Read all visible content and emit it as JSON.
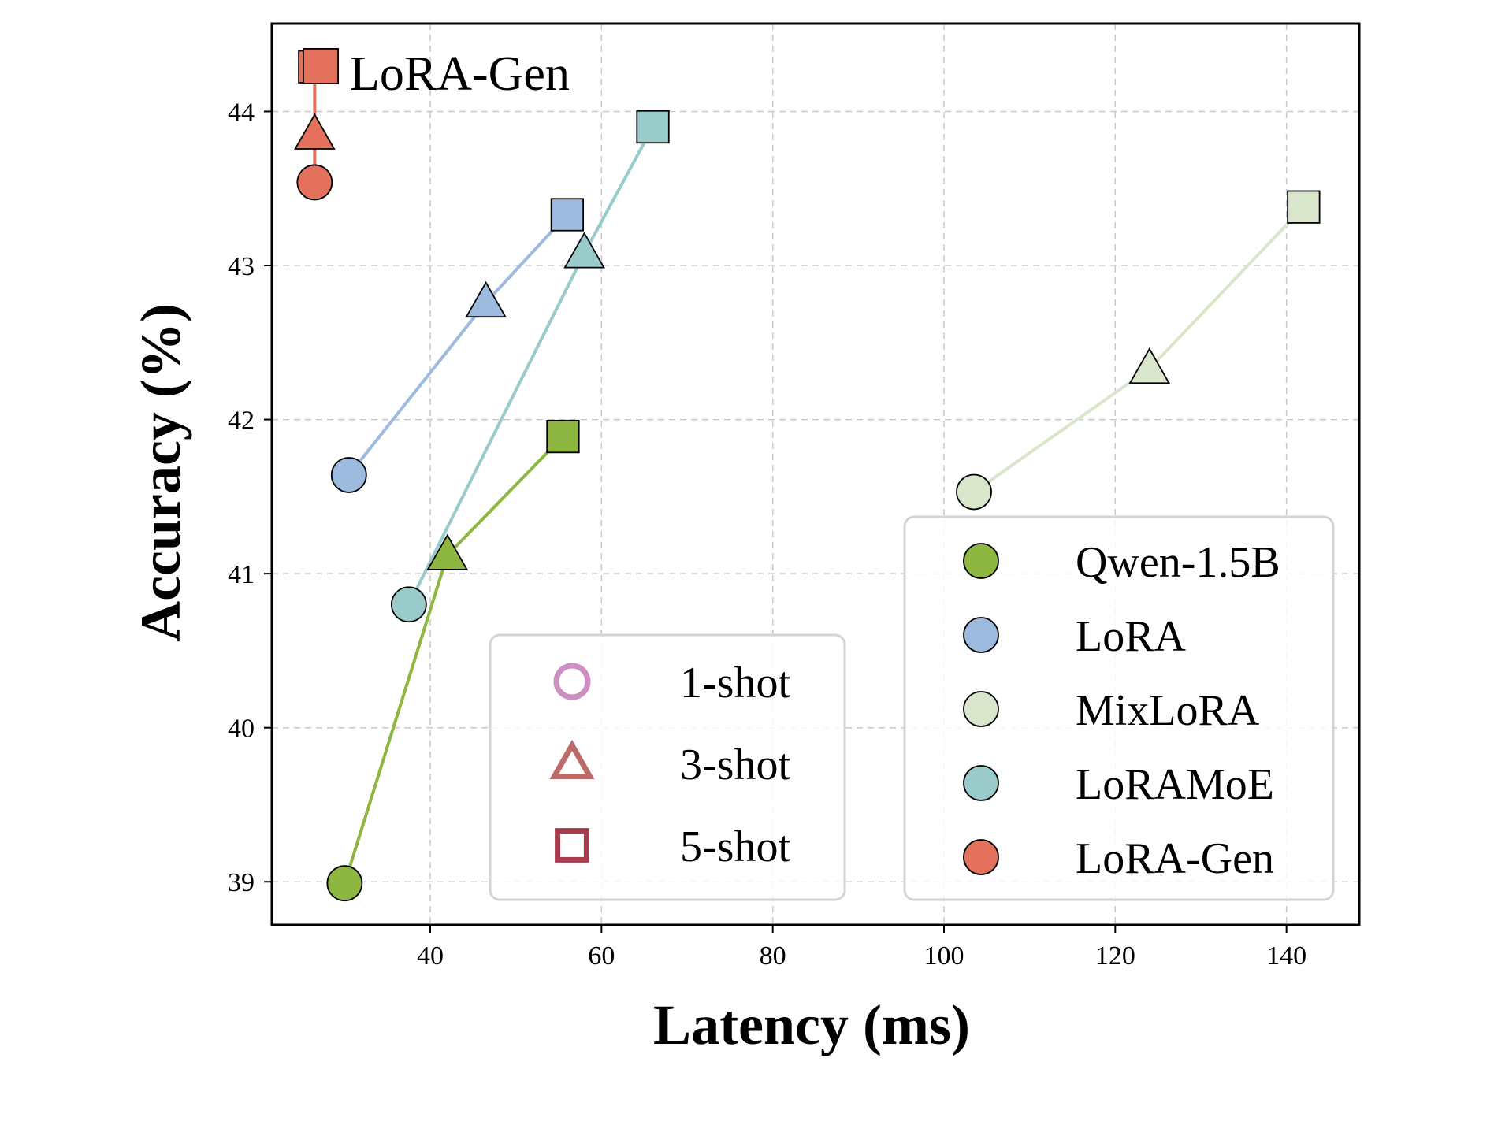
{
  "chart_data": {
    "type": "line",
    "xlabel": "Latency (ms)",
    "ylabel": "Accuracy (%)",
    "xlim": [
      21.5,
      148.5
    ],
    "ylim": [
      38.72,
      44.57
    ],
    "xticks": [
      40,
      60,
      80,
      100,
      120,
      140
    ],
    "yticks": [
      39,
      40,
      41,
      42,
      43,
      44
    ],
    "grid": true,
    "series": [
      {
        "name": "Qwen-1.5B",
        "color": "#8db741",
        "points": [
          {
            "shot": "1-shot",
            "x": 30,
            "y": 38.99
          },
          {
            "shot": "3-shot",
            "x": 42,
            "y": 41.12
          },
          {
            "shot": "5-shot",
            "x": 55.5,
            "y": 41.89
          }
        ]
      },
      {
        "name": "LoRA",
        "color": "#9dbbdf",
        "points": [
          {
            "shot": "1-shot",
            "x": 30.5,
            "y": 41.64
          },
          {
            "shot": "3-shot",
            "x": 46.5,
            "y": 42.76
          },
          {
            "shot": "5-shot",
            "x": 56,
            "y": 43.33
          }
        ]
      },
      {
        "name": "MixLoRA",
        "color": "#dae6cc",
        "points": [
          {
            "shot": "1-shot",
            "x": 103.5,
            "y": 41.53
          },
          {
            "shot": "3-shot",
            "x": 124,
            "y": 42.33
          },
          {
            "shot": "5-shot",
            "x": 142,
            "y": 43.38
          }
        ]
      },
      {
        "name": "LoRAMoE",
        "color": "#98cbca",
        "points": [
          {
            "shot": "1-shot",
            "x": 37.5,
            "y": 40.8
          },
          {
            "shot": "3-shot",
            "x": 58,
            "y": 43.08
          },
          {
            "shot": "5-shot",
            "x": 66,
            "y": 43.9
          }
        ]
      },
      {
        "name": "LoRA-Gen",
        "color": "#e4715b",
        "points": [
          {
            "shot": "1-shot",
            "x": 26.5,
            "y": 43.54
          },
          {
            "shot": "3-shot",
            "x": 26.5,
            "y": 43.85
          },
          {
            "shot": "5-shot",
            "x": 26.5,
            "y": 44.29
          }
        ]
      }
    ],
    "shot_legend": {
      "location": "lower-center",
      "entries": [
        {
          "label": "1-shot",
          "marker": "circle",
          "color": "#cd8fc1"
        },
        {
          "label": "3-shot",
          "marker": "triangle",
          "color": "#bc6b6b"
        },
        {
          "label": "5-shot",
          "marker": "square",
          "color": "#a73d4c"
        }
      ]
    },
    "method_legend": {
      "location": "lower-right",
      "entries": [
        {
          "label": "Qwen-1.5B",
          "color": "#8db741"
        },
        {
          "label": "LoRA",
          "color": "#9dbbdf"
        },
        {
          "label": "MixLoRA",
          "color": "#dae6cc"
        },
        {
          "label": "LoRAMoE",
          "color": "#98cbca"
        },
        {
          "label": "LoRA-Gen",
          "color": "#e4715b"
        }
      ]
    },
    "annotations": [
      {
        "text": "LoRA-Gen",
        "near": "LoRA-Gen 5-shot point"
      }
    ]
  }
}
